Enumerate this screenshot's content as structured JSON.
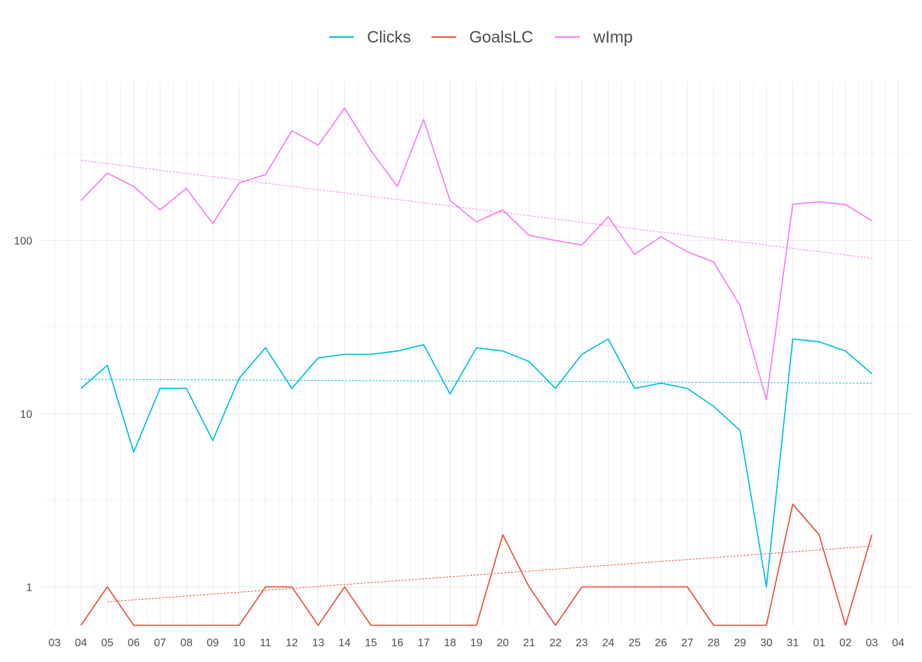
{
  "chart_data": {
    "type": "line",
    "title": "",
    "xlabel": "",
    "ylabel": "",
    "y_scale": "log10",
    "ylim": [
      0.59,
      670
    ],
    "y_ticks": [
      {
        "value": 1,
        "label": "1"
      },
      {
        "value": 10,
        "label": "10"
      },
      {
        "value": 100,
        "label": "100"
      }
    ],
    "x_tick_labels": [
      "03",
      "04",
      "05",
      "06",
      "07",
      "08",
      "09",
      "10",
      "11",
      "12",
      "13",
      "14",
      "15",
      "16",
      "17",
      "18",
      "19",
      "20",
      "21",
      "22",
      "23",
      "24",
      "25",
      "26",
      "27",
      "28",
      "29",
      "30",
      "31",
      "01",
      "02",
      "03",
      "04"
    ],
    "categories": [
      "04",
      "05",
      "06",
      "07",
      "08",
      "09",
      "10",
      "11",
      "12",
      "13",
      "14",
      "15",
      "16",
      "17",
      "18",
      "19",
      "20",
      "21",
      "22",
      "23",
      "24",
      "25",
      "26",
      "27",
      "28",
      "29",
      "30",
      "31",
      "01",
      "02",
      "03"
    ],
    "grid": true,
    "legend": {
      "position": "top",
      "entries": [
        "Clicks",
        "GoalsLC",
        "wImp"
      ]
    },
    "colors": {
      "Clicks": "#00bfe0",
      "GoalsLC": "#e8533a",
      "wImp": "#f67ef3",
      "grid": "#ebebeb"
    },
    "floor_value": 0.6,
    "series": [
      {
        "name": "Clicks",
        "values": [
          14,
          19,
          6,
          14,
          14,
          7,
          16,
          24,
          14,
          21,
          22,
          22,
          23,
          25,
          13,
          24,
          23,
          20,
          14,
          22,
          27,
          14,
          15,
          14,
          11,
          8,
          1,
          27,
          26,
          23,
          17
        ],
        "trend": [
          15.8,
          15
        ]
      },
      {
        "name": "GoalsLC",
        "values": [
          null,
          1,
          null,
          null,
          null,
          null,
          null,
          1,
          1,
          null,
          1,
          null,
          null,
          null,
          null,
          null,
          2,
          1,
          null,
          1,
          1,
          1,
          1,
          1,
          null,
          null,
          null,
          3,
          2,
          null,
          2
        ],
        "trend": [
          0.82,
          1.72
        ]
      },
      {
        "name": "wImp",
        "values": [
          170,
          245,
          205,
          150,
          200,
          125,
          215,
          240,
          430,
          355,
          580,
          330,
          205,
          500,
          170,
          128,
          150,
          107,
          100,
          94,
          137,
          83,
          105,
          86,
          75,
          42,
          12,
          162,
          167,
          161,
          130
        ],
        "trend": [
          290,
          79
        ]
      }
    ]
  }
}
